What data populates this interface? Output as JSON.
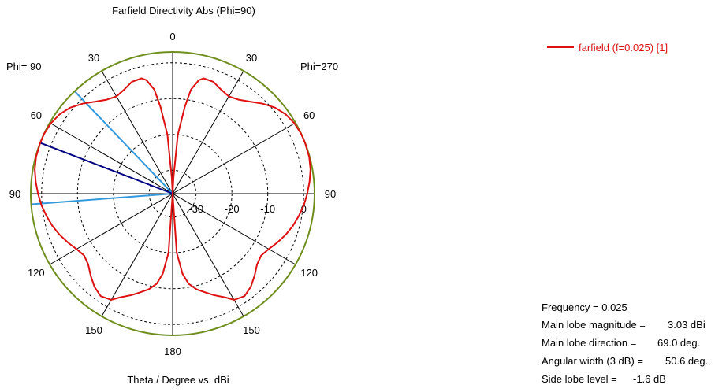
{
  "chart_data": {
    "type": "polar",
    "title": "Farfield Directivity Abs (Phi=90)",
    "xlabel": "Theta / Degree vs. dBi",
    "phi_left_label": "Phi= 90",
    "phi_right_label": "Phi=270",
    "angle_ticks": [
      "0",
      "30",
      "60",
      "90",
      "120",
      "150",
      "180",
      "30",
      "60",
      "90",
      "120",
      "150"
    ],
    "radial_ticks": [
      "-30",
      "-20",
      "-10",
      "0"
    ],
    "radial_range_dbi": [
      -40,
      3.03
    ],
    "legend": [
      {
        "label": "farfield (f=0.025) [1]",
        "color": "#dd1111"
      }
    ],
    "series": [
      {
        "name": "farfield (f=0.025) [1]",
        "color": "#dd1111",
        "theta_deg": [
          0,
          3,
          5,
          8,
          10,
          13,
          15,
          20,
          25,
          30,
          35,
          40,
          45,
          50,
          55,
          60,
          65,
          69,
          75,
          80,
          85,
          90,
          95,
          100,
          105,
          110,
          115,
          120,
          125,
          130,
          135,
          140,
          145,
          150,
          153,
          158,
          162,
          166,
          170,
          173,
          176,
          180
        ],
        "dbi": [
          -40,
          -32,
          -20,
          -12,
          -7,
          -4,
          -3.2,
          -3.3,
          -4.5,
          -5.2,
          -4.5,
          -3.0,
          -1.0,
          0.8,
          2.0,
          2.7,
          3.0,
          3.03,
          2.9,
          2.5,
          1.8,
          1.0,
          0.2,
          -0.8,
          -1.8,
          -3.0,
          -4.3,
          -5.6,
          -6.4,
          -5.8,
          -4.2,
          -2.6,
          -1.6,
          -2.3,
          -4.0,
          -6.0,
          -7.6,
          -9.0,
          -11.0,
          -14.0,
          -20.0,
          -40.0
        ]
      }
    ],
    "reference_circle_dbi": 3.03,
    "main_lobe_direction_deg": 69.0,
    "angular_width_3db_deg": 50.6,
    "beam_edge_deg": [
      43.7,
      94.3
    ],
    "reference_color": "#6f8e1e",
    "main_lobe_color": "#000080",
    "beam_edge_color": "#3399dd"
  },
  "info": {
    "frequency": {
      "label": "Frequency = 0.025",
      "value": ""
    },
    "main_lobe_magnitude": {
      "label": "Main lobe magnitude =",
      "value": "3.03 dBi"
    },
    "main_lobe_direction": {
      "label": "Main lobe direction =",
      "value": "69.0 deg."
    },
    "angular_width": {
      "label": "Angular width (3 dB) =",
      "value": "50.6 deg."
    },
    "side_lobe_level": {
      "label": "Side lobe level =",
      "value": "-1.6 dB"
    }
  }
}
